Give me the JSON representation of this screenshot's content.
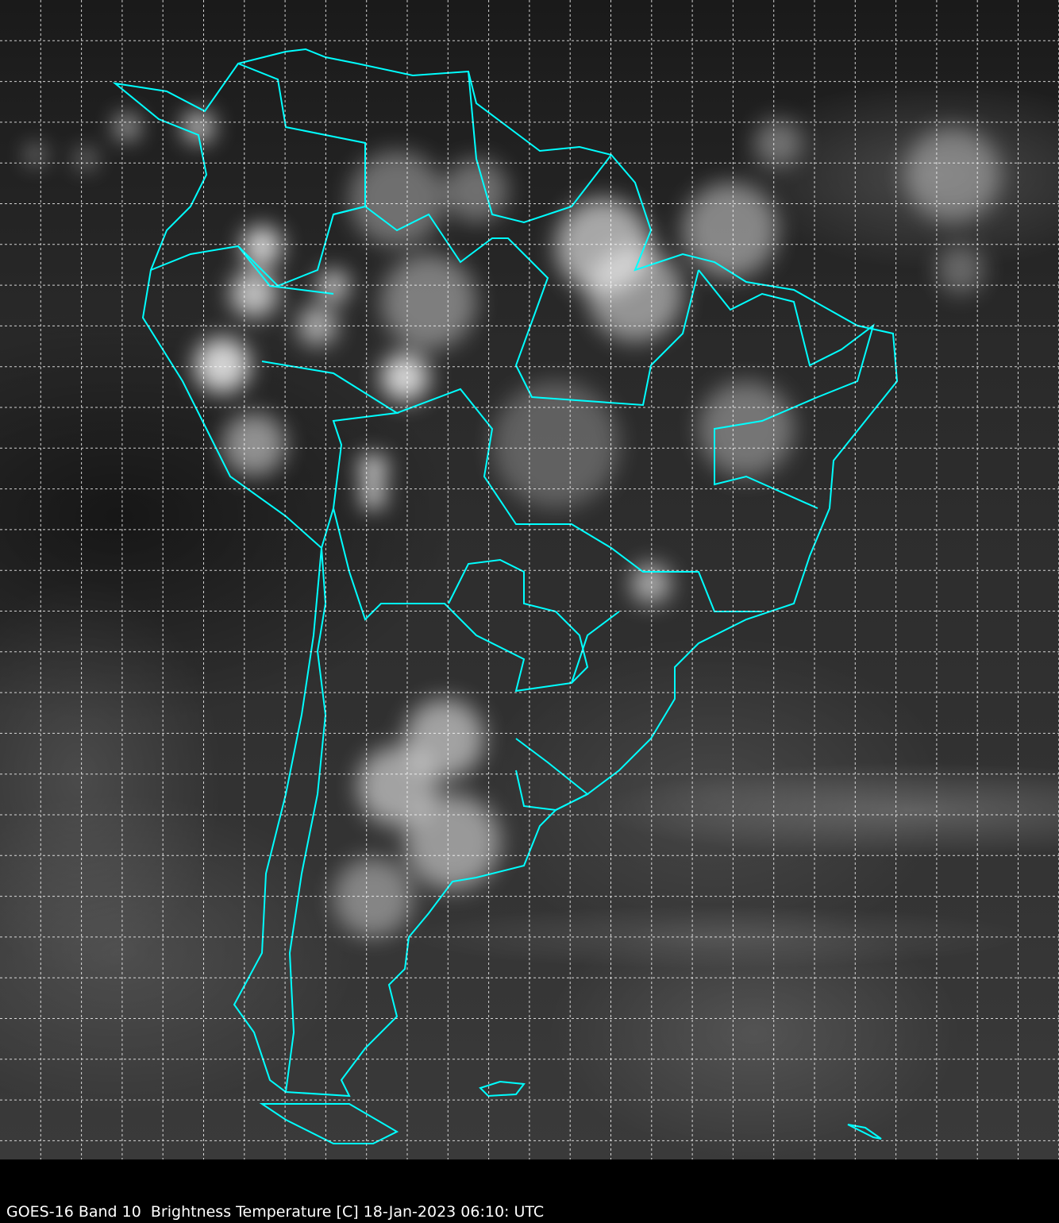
{
  "caption": "GOES-16 Band 10  Brightness Temperature [C] 18-Jan-2023 06:10: UTC",
  "colors": {
    "coastline": "#00ffff",
    "grid": "#ffffff",
    "background": "#000000"
  }
}
